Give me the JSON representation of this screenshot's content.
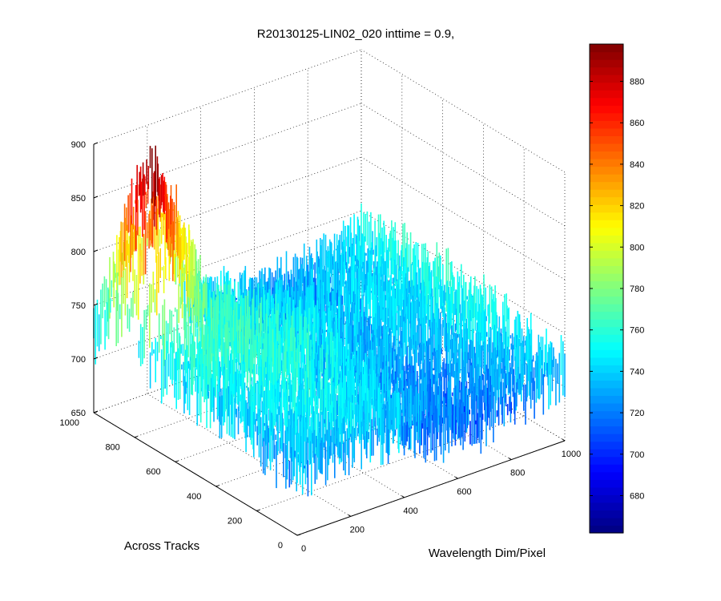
{
  "chart_data": {
    "type": "surface-3d",
    "title": "R20130125-LIN02_020 inttime = 0.9,",
    "xlabel": "Wavelength Dim/Pixel",
    "ylabel": "Across Tracks",
    "zlabel": "",
    "xlim": [
      0,
      1000
    ],
    "ylim": [
      0,
      1000
    ],
    "zlim": [
      650,
      900
    ],
    "xticks": [
      "0",
      "200",
      "400",
      "600",
      "800",
      "1000"
    ],
    "yticks": [
      "0",
      "200",
      "400",
      "600",
      "800",
      "1000"
    ],
    "zticks": [
      "650",
      "700",
      "750",
      "800",
      "850",
      "900"
    ],
    "colorbar": {
      "range": [
        662,
        898
      ],
      "ticks": [
        "680",
        "700",
        "720",
        "740",
        "760",
        "780",
        "800",
        "820",
        "840",
        "860",
        "880"
      ],
      "colormap": "jet"
    },
    "grid": true,
    "description_values": {
      "baseline_level": 725,
      "peak_level": 880,
      "noise_amplitude": 25
    }
  }
}
